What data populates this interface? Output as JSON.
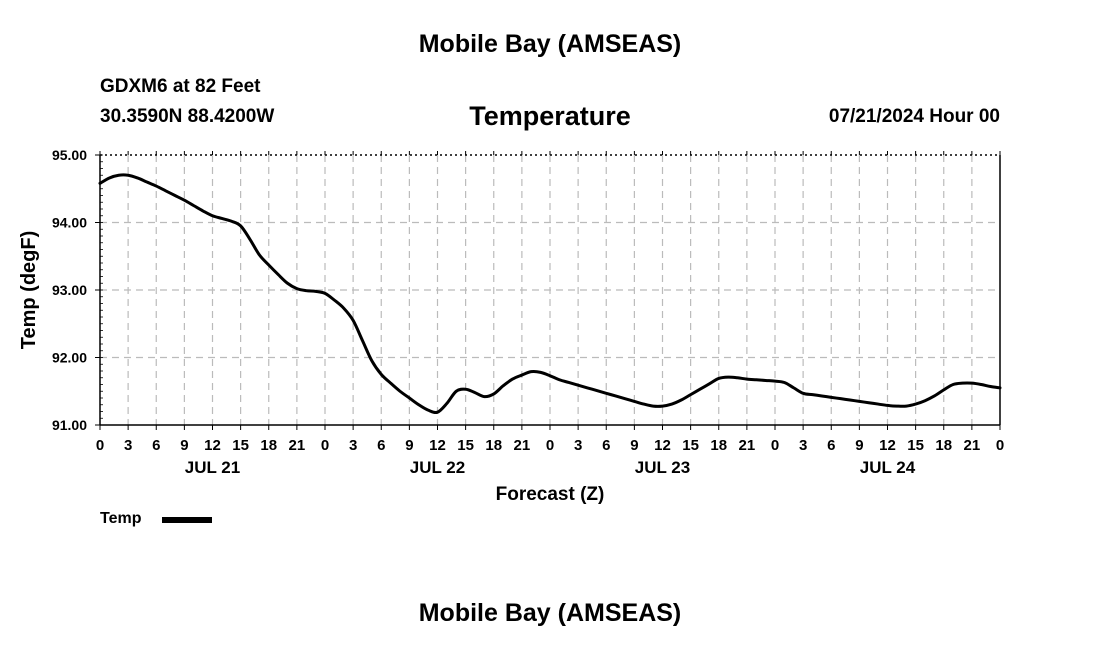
{
  "header": {
    "title": "Mobile Bay (AMSEAS)",
    "station": "GDXM6 at 82 Feet",
    "coords": "30.3590N  88.4200W",
    "parameter": "Temperature",
    "datetime": "07/21/2024 Hour 00"
  },
  "footer": {
    "title": "Mobile Bay (AMSEAS)"
  },
  "legend": {
    "label": "Temp"
  },
  "colors": {
    "line": "#000000",
    "grid": "#bbbbbb",
    "background": "#ffffff"
  },
  "chart_data": {
    "type": "line",
    "title": "Temperature",
    "xlabel": "Forecast (Z)",
    "ylabel": "Temp (degF)",
    "xlim": [
      0,
      96
    ],
    "ylim": [
      91.0,
      95.0
    ],
    "grid": true,
    "x_ticks": [
      0,
      3,
      6,
      9,
      12,
      15,
      18,
      21,
      24,
      27,
      30,
      33,
      36,
      39,
      42,
      45,
      48,
      51,
      54,
      57,
      60,
      63,
      66,
      69,
      72,
      75,
      78,
      81,
      84,
      87,
      90,
      93,
      96
    ],
    "x_tick_labels": [
      "0",
      "3",
      "6",
      "9",
      "12",
      "15",
      "18",
      "21",
      "0",
      "3",
      "6",
      "9",
      "12",
      "15",
      "18",
      "21",
      "0",
      "3",
      "6",
      "9",
      "12",
      "15",
      "18",
      "21",
      "0",
      "3",
      "6",
      "9",
      "12",
      "15",
      "18",
      "21",
      "0"
    ],
    "y_ticks": [
      91.0,
      92.0,
      93.0,
      94.0,
      95.0
    ],
    "y_tick_labels": [
      "91.00",
      "92.00",
      "93.00",
      "94.00",
      "95.00"
    ],
    "day_labels": [
      {
        "x": 12,
        "label": "JUL 21"
      },
      {
        "x": 36,
        "label": "JUL 22"
      },
      {
        "x": 60,
        "label": "JUL 23"
      },
      {
        "x": 84,
        "label": "JUL 24"
      }
    ],
    "series": [
      {
        "name": "Temp",
        "x": [
          0,
          1,
          2,
          3,
          4,
          5,
          6,
          7,
          8,
          9,
          10,
          11,
          12,
          13,
          14,
          15,
          16,
          17,
          18,
          19,
          20,
          21,
          22,
          23,
          24,
          25,
          26,
          27,
          28,
          29,
          30,
          31,
          32,
          33,
          34,
          35,
          36,
          37,
          38,
          39,
          40,
          41,
          42,
          43,
          44,
          45,
          46,
          47,
          48,
          49,
          50,
          51,
          52,
          53,
          54,
          55,
          56,
          57,
          58,
          59,
          60,
          61,
          62,
          63,
          64,
          65,
          66,
          67,
          68,
          69,
          70,
          71,
          72,
          73,
          74,
          75,
          76,
          77,
          78,
          79,
          80,
          81,
          82,
          83,
          84,
          85,
          86,
          87,
          88,
          89,
          90,
          91,
          92,
          93,
          94,
          95,
          96
        ],
        "y": [
          94.58,
          94.66,
          94.7,
          94.7,
          94.66,
          94.6,
          94.54,
          94.47,
          94.4,
          94.33,
          94.25,
          94.17,
          94.1,
          94.06,
          94.02,
          93.95,
          93.75,
          93.52,
          93.37,
          93.23,
          93.1,
          93.02,
          92.99,
          92.98,
          92.95,
          92.85,
          92.73,
          92.55,
          92.25,
          91.95,
          91.75,
          91.62,
          91.5,
          91.4,
          91.3,
          91.22,
          91.19,
          91.32,
          91.5,
          91.53,
          91.48,
          91.42,
          91.46,
          91.58,
          91.68,
          91.74,
          91.79,
          91.78,
          91.73,
          91.67,
          91.63,
          91.59,
          91.55,
          91.51,
          91.47,
          91.43,
          91.39,
          91.35,
          91.31,
          91.28,
          91.28,
          91.31,
          91.37,
          91.45,
          91.53,
          91.61,
          91.69,
          91.71,
          91.7,
          91.68,
          91.67,
          91.66,
          91.65,
          91.63,
          91.55,
          91.47,
          91.45,
          91.43,
          91.41,
          91.39,
          91.37,
          91.35,
          91.33,
          91.31,
          91.29,
          91.28,
          91.28,
          91.31,
          91.36,
          91.43,
          91.52,
          91.6,
          91.62,
          91.62,
          91.6,
          91.57,
          91.55
        ]
      }
    ]
  }
}
